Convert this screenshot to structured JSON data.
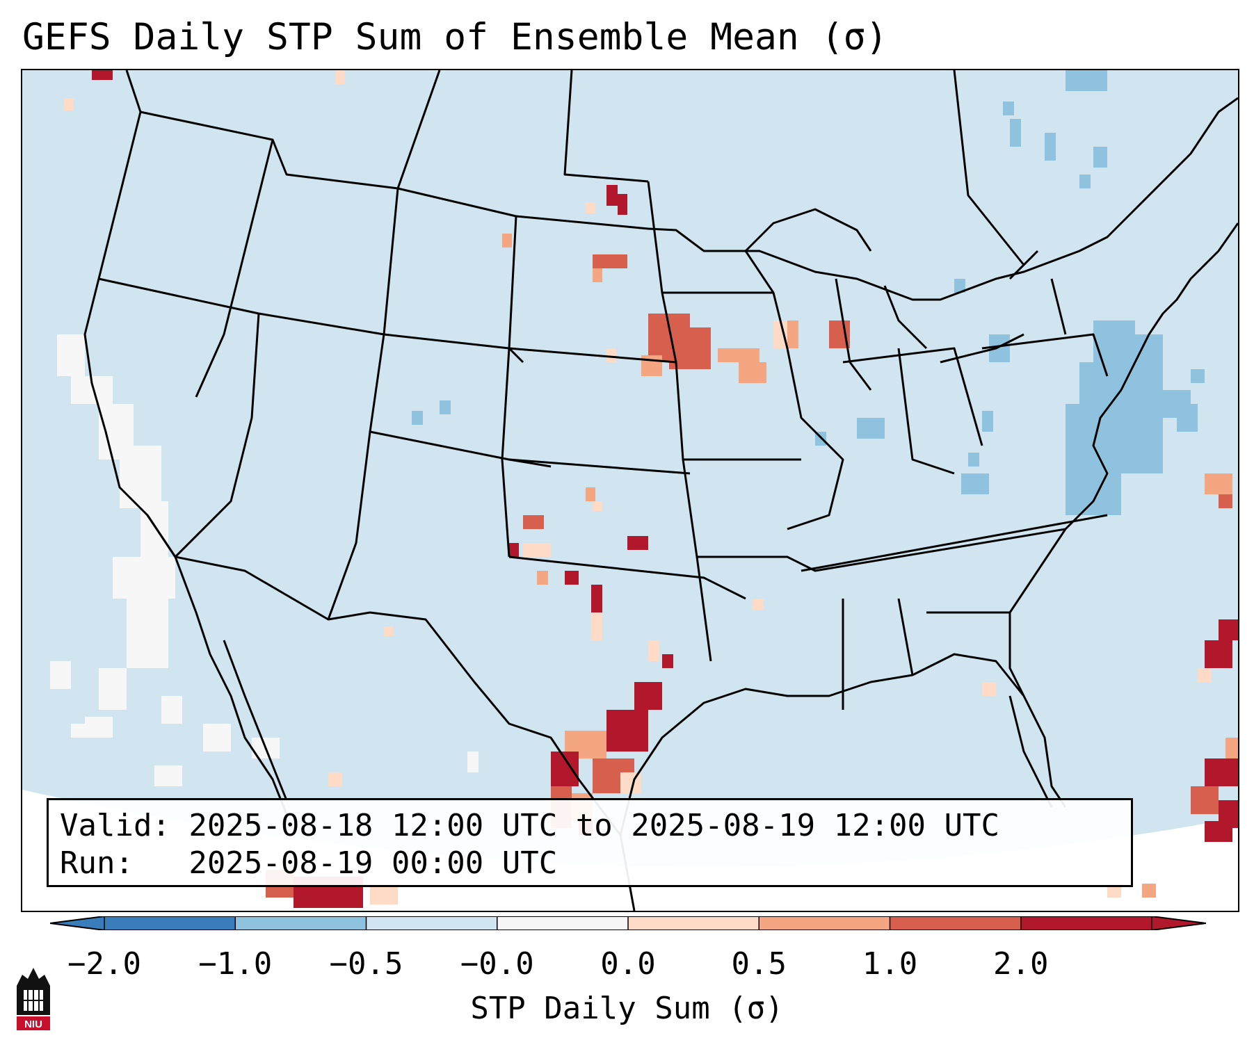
{
  "title": "GEFS Daily STP Sum of Ensemble Mean (σ)",
  "info": {
    "valid_line": "Valid: 2025-08-18 12:00 UTC to 2025-08-19 12:00 UTC",
    "run_line": "Run:   2025-08-19 00:00 UTC"
  },
  "colorbar": {
    "label": "STP Daily Sum (σ)",
    "ticks": [
      "−2.0",
      "−1.0",
      "−0.5",
      "−0.0",
      "0.0",
      "0.5",
      "1.0",
      "2.0"
    ],
    "colors": [
      "#3a7dbb",
      "#8fc2de",
      "#d1e5f0",
      "#f7f7f7",
      "#fddbc7",
      "#f4a582",
      "#d6604d",
      "#b2182b"
    ],
    "extend": "both"
  },
  "map": {
    "region": "Continental United States",
    "background_color": "#d1e5f0",
    "outside_color": "#ffffff",
    "border_color": "#000000"
  },
  "logo": {
    "text": "NIU",
    "accent": "#c8102e"
  }
}
